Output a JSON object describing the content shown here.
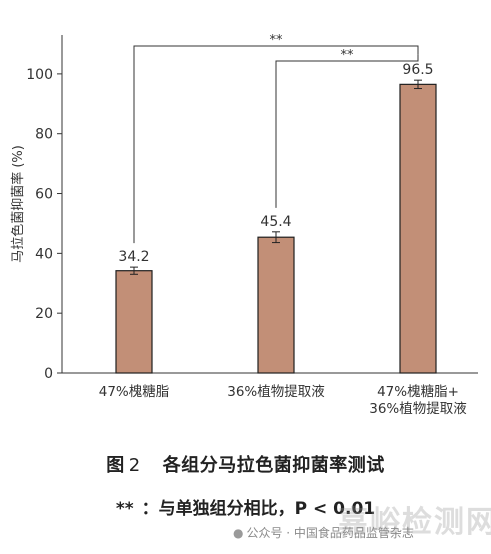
{
  "chart_data": {
    "type": "bar",
    "categories": [
      "47%槐糖脂",
      "36%植物提取液",
      "47%槐糖脂+\n36%植物提取液"
    ],
    "values": [
      34.2,
      45.4,
      96.5
    ],
    "errors": [
      1.2,
      1.8,
      1.4
    ],
    "value_labels": [
      "34.2",
      "45.4",
      "96.5"
    ],
    "ylabel": "马拉色菌抑菌率 (%)",
    "xlabel": "",
    "ylim": [
      0,
      113
    ],
    "yticks": [
      0,
      20,
      40,
      60,
      80,
      100
    ],
    "grid": false,
    "bar_color": "#c28f77",
    "bar_edge_color": "#1f1f1f",
    "significance": [
      {
        "from": 0,
        "to": 2,
        "label": "**"
      },
      {
        "from": 1,
        "to": 2,
        "label": "**"
      }
    ]
  },
  "caption": {
    "figure_label": "图",
    "figure_number": "2",
    "title": "各组分马拉色菌抑菌率测试"
  },
  "note": {
    "stars": "**",
    "text": "：与单独组分相比，P < 0.01"
  },
  "watermark": {
    "icon": "wechat-icon",
    "text": "公众号 · 中国食品药品监管杂志",
    "overlay": "嘉峪检测网"
  }
}
